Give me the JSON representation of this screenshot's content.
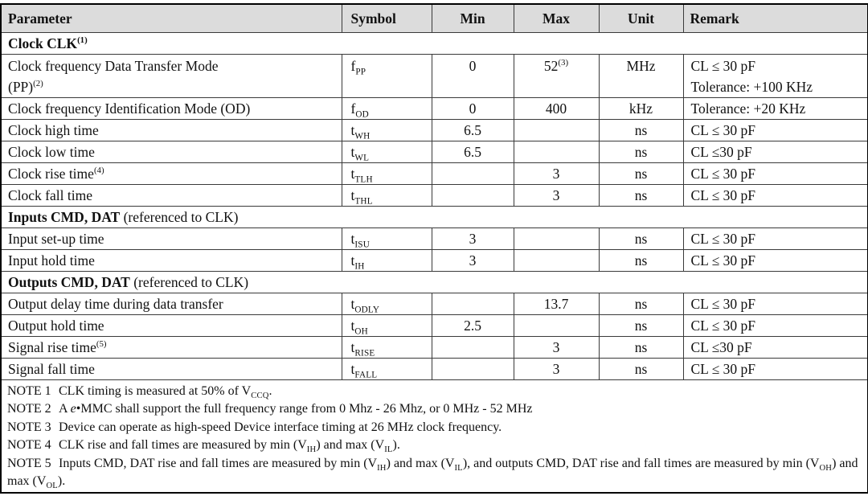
{
  "colors": {
    "header_bg": "#dcdcdc",
    "grid_line": "#3a3a3a",
    "outer_border": "#000000",
    "text": "#111111"
  },
  "header": {
    "columns": [
      "Parameter",
      "Symbol",
      "Min",
      "Max",
      "Unit",
      "Remark"
    ]
  },
  "rows": [
    {
      "type": "section",
      "bold": "Clock CLK",
      "sup": "(1)",
      "rest": ""
    },
    {
      "param_l1": "Clock frequency Data Transfer Mode",
      "param_l2": "(PP)",
      "param_l2_sup": "(2)",
      "sym_base": "f",
      "sym_sub": "PP",
      "min": "0",
      "max": "52",
      "max_sup": "(3)",
      "unit": "MHz",
      "remark_l1": "CL ≤ 30 pF",
      "remark_l2": "Tolerance: +100 KHz"
    },
    {
      "param": "Clock frequency Identification Mode (OD)",
      "sym_base": "f",
      "sym_sub": "OD",
      "min": "0",
      "max": "400",
      "unit": "kHz",
      "remark": "Tolerance: +20 KHz"
    },
    {
      "param": "Clock high time",
      "sym_base": "t",
      "sym_sub": "WH",
      "min": "6.5",
      "max": "",
      "unit": "ns",
      "remark": "CL ≤ 30 pF"
    },
    {
      "param": "Clock low time",
      "sym_base": "t",
      "sym_sub": "WL",
      "min": "6.5",
      "max": "",
      "unit": "ns",
      "remark": "CL ≤30 pF"
    },
    {
      "param": "Clock rise time",
      "param_sup": "(4)",
      "sym_base": "t",
      "sym_sub": "TLH",
      "min": "",
      "max": "3",
      "unit": "ns",
      "remark": "CL ≤ 30 pF"
    },
    {
      "param": "Clock fall time",
      "sym_base": "t",
      "sym_sub": "THL",
      "min": "",
      "max": "3",
      "unit": "ns",
      "remark": "CL ≤ 30 pF"
    },
    {
      "type": "section",
      "bold": "Inputs CMD, DAT",
      "sup": "",
      "rest": " (referenced to CLK)"
    },
    {
      "param": "Input set-up time",
      "sym_base": "t",
      "sym_sub": "ISU",
      "min": "3",
      "max": "",
      "unit": "ns",
      "remark": "CL ≤ 30 pF"
    },
    {
      "param": "Input hold time",
      "sym_base": "t",
      "sym_sub": "IH",
      "min": "3",
      "max": "",
      "unit": "ns",
      "remark": "CL ≤ 30 pF"
    },
    {
      "type": "section",
      "bold": "Outputs CMD, DAT",
      "sup": "",
      "rest": " (referenced to CLK)"
    },
    {
      "param": "Output delay time during data transfer",
      "sym_base": "t",
      "sym_sub": "ODLY",
      "min": "",
      "max": "13.7",
      "unit": "ns",
      "remark": "CL ≤ 30 pF"
    },
    {
      "param": "Output hold time",
      "sym_base": "t",
      "sym_sub": "OH",
      "min": "2.5",
      "max": "",
      "unit": "ns",
      "remark": "CL ≤ 30 pF"
    },
    {
      "param": "Signal rise time",
      "param_sup": "(5)",
      "sym_base": "t",
      "sym_sub": "RISE",
      "min": "",
      "max": "3",
      "unit": "ns",
      "remark": "CL ≤30 pF"
    },
    {
      "param": "Signal fall time",
      "sym_base": "t",
      "sym_sub": "FALL",
      "min": "",
      "max": "3",
      "unit": "ns",
      "remark": "CL ≤ 30 pF"
    }
  ],
  "notes": {
    "items": [
      {
        "label": "NOTE 1",
        "t1": "CLK timing is measured at 50% of V",
        "s1": "CCQ",
        "t2": "."
      },
      {
        "label": "NOTE 2",
        "t1": "A ",
        "em": "e",
        "t2": "•MMC shall support the full frequency range from 0 Mhz - 26 Mhz, or 0 MHz - 52 MHz"
      },
      {
        "label": "NOTE 3",
        "t1": "Device can operate as high-speed Device interface timing at 26 MHz clock frequency."
      },
      {
        "label": "NOTE 4",
        "t1": "CLK rise and fall times are measured by min (V",
        "s1": "IH",
        "t2": ") and max (V",
        "s2": "IL",
        "t3": ")."
      },
      {
        "label": "NOTE 5",
        "t1": "Inputs CMD, DAT rise and fall times are measured by min (V",
        "s1": "IH",
        "t2": ") and max (V",
        "s2": "IL",
        "t3": "), and outputs CMD, DAT rise and fall times are measured by min (V",
        "s3": "OH",
        "t4": ") and max (V",
        "s4": "OL",
        "t5": ")."
      }
    ]
  }
}
